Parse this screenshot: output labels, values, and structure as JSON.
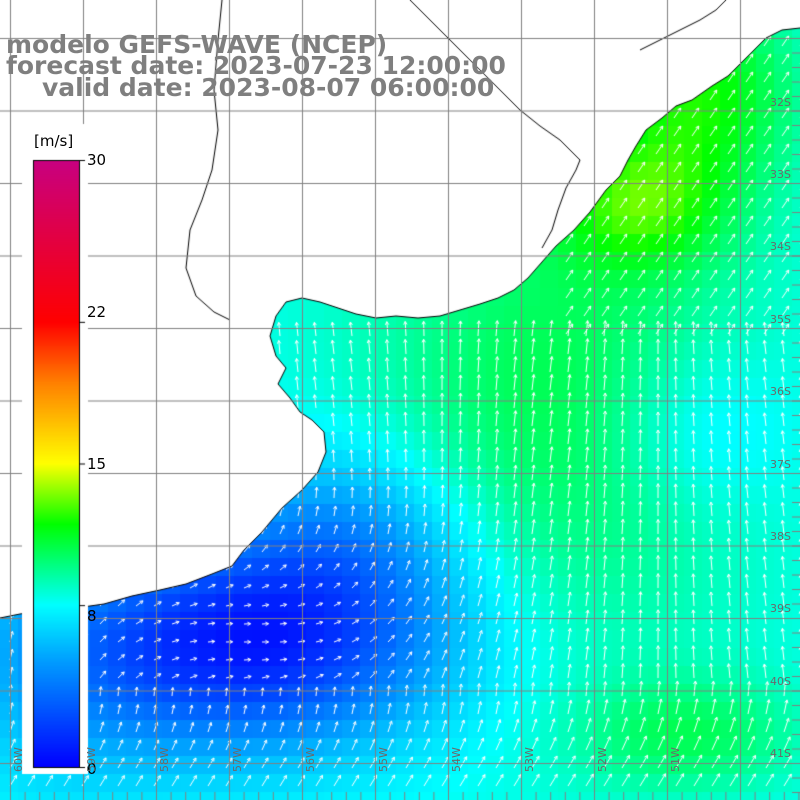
{
  "titles": {
    "model": "modelo GEFS-WAVE (NCEP)",
    "forecast": "forecast date: 2023-07-23 12:00:00",
    "valid": "valid date: 2023-08-07 06:00:00"
  },
  "colorbar": {
    "unit": "[m/s]",
    "min": 0,
    "max": 30,
    "ticks": [
      "30",
      "22",
      "15",
      "8",
      "0"
    ],
    "tick_values": [
      30,
      22,
      15,
      8,
      0
    ],
    "colors": [
      "#0000ff",
      "#00b4ff",
      "#00ffff",
      "#00ff00",
      "#ffff00",
      "#ff8000",
      "#ff0000",
      "#c80080"
    ]
  },
  "grid": {
    "lat_labels": [
      "32S",
      "33S",
      "34S",
      "35S",
      "36S",
      "37S",
      "38S",
      "39S",
      "40S",
      "41S"
    ],
    "lon_labels": [
      "60W",
      "59W",
      "58W",
      "57W",
      "56W",
      "55W",
      "54W",
      "53W",
      "52W",
      "51W"
    ]
  },
  "colors": {
    "land": "#ffffff",
    "coast": "#000000",
    "grid": "#808080",
    "arrows": "#ffffff",
    "title": "#7f7f7f"
  }
}
